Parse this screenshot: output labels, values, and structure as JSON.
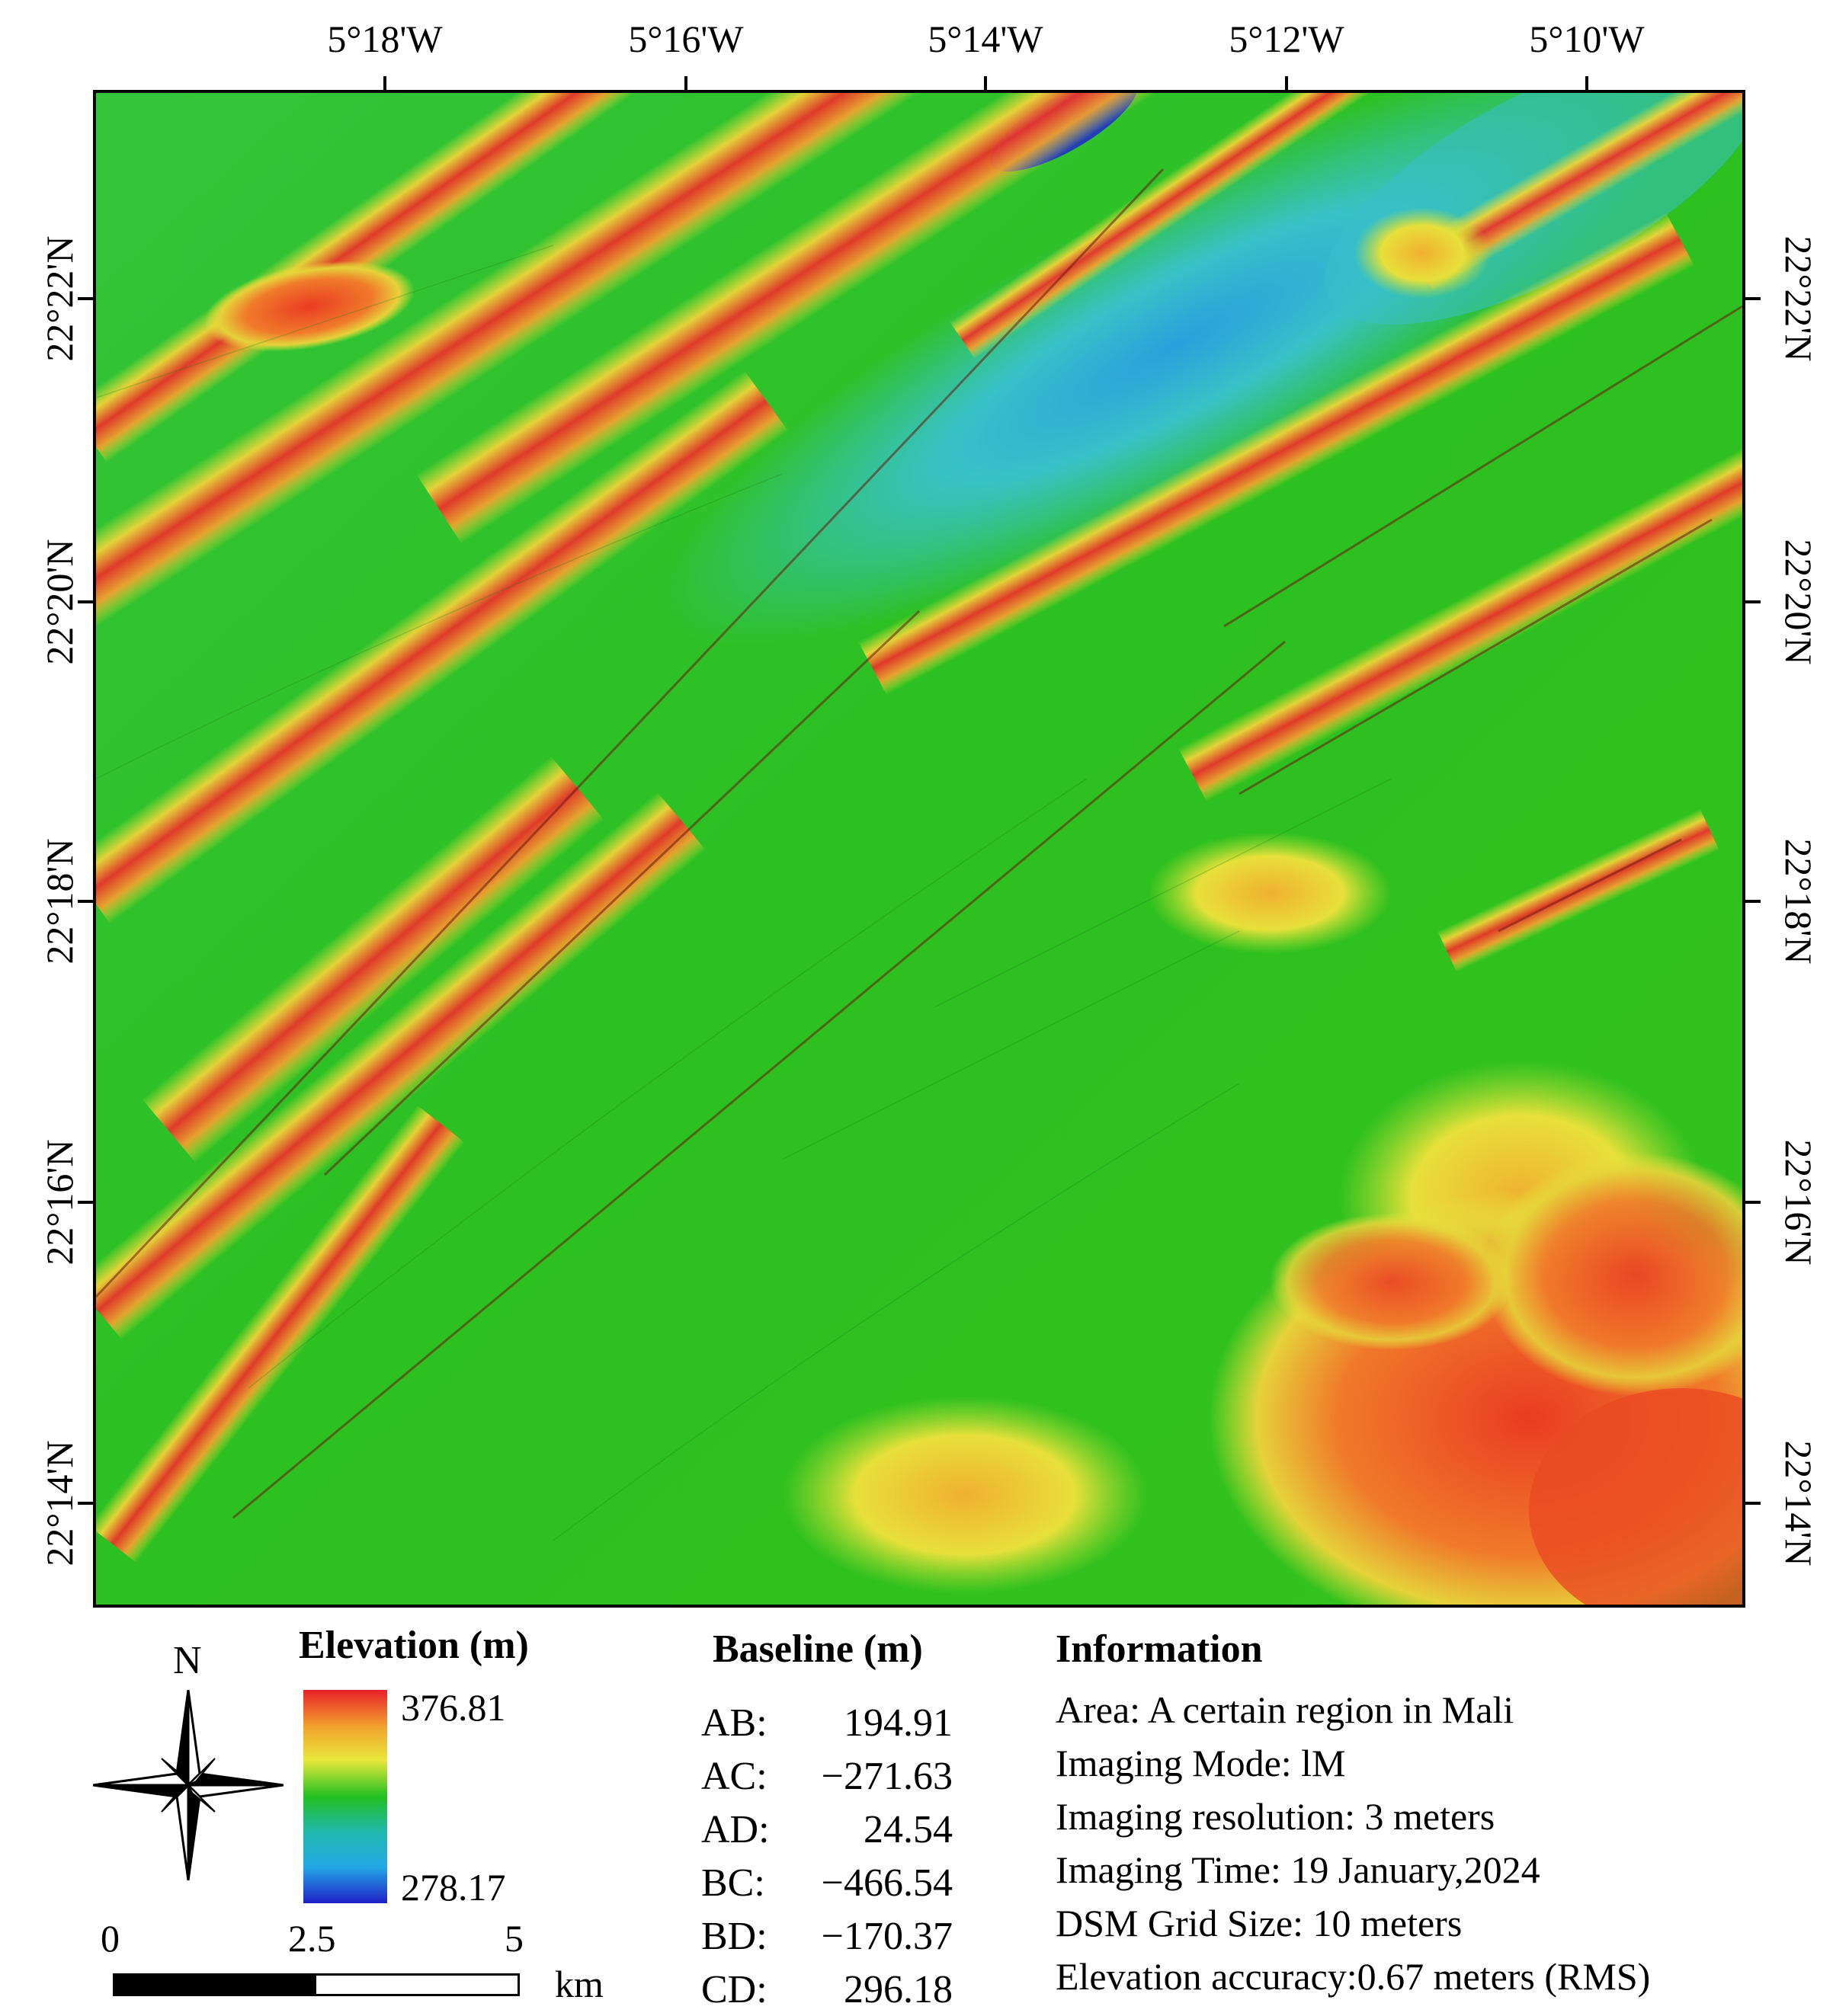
{
  "map": {
    "lon_labels": [
      "5°18'W",
      "5°16'W",
      "5°14'W",
      "5°12'W",
      "5°10'W"
    ],
    "lat_labels": [
      "22°22'N",
      "22°20'N",
      "22°18'N",
      "22°16'N",
      "22°14'N"
    ]
  },
  "legend": {
    "north_label": "N",
    "elevation_title": "Elevation (m)",
    "elevation_max": "376.81",
    "elevation_min": "278.17",
    "colors": [
      "#e8202a",
      "#f2a02e",
      "#e8e83a",
      "#22c022",
      "#20b8b0",
      "#23a8e6",
      "#2020c8"
    ],
    "scale_labels": [
      "0",
      "2.5",
      "5"
    ],
    "scale_unit": "km"
  },
  "baseline": {
    "title": "Baseline (m)",
    "rows": [
      {
        "key": "AB:",
        "value": "194.91"
      },
      {
        "key": "AC:",
        "value": "−271.63"
      },
      {
        "key": "AD:",
        "value": "24.54"
      },
      {
        "key": "BC:",
        "value": "−466.54"
      },
      {
        "key": "BD:",
        "value": "−170.37"
      },
      {
        "key": "CD:",
        "value": "296.18"
      }
    ]
  },
  "information": {
    "title": "Information",
    "lines": [
      "Area: A certain region in Mali",
      "Imaging Mode: lM",
      "Imaging resolution: 3 meters",
      "Imaging Time: 19 January,2024",
      "DSM Grid Size: 10 meters",
      "Elevation accuracy:0.67 meters (RMS)"
    ]
  }
}
